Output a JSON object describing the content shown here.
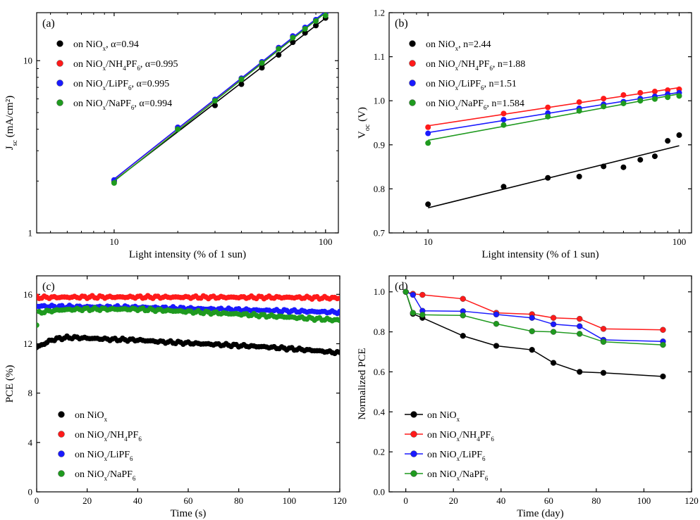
{
  "colors": {
    "black": "#000000",
    "red": "#ff1a1a",
    "blue": "#1a1aff",
    "green": "#1f9a1f"
  },
  "chart_data": [
    {
      "id": "a",
      "type": "scatter",
      "panel_label": "(a)",
      "xlabel": "Light intensity (% of 1 sun)",
      "ylabel_main": "J",
      "ylabel_sub": "sc",
      "ylabel_unit": " (mA/cm²)",
      "xscale": "log",
      "yscale": "log",
      "xlim": [
        4.3,
        115
      ],
      "ylim": [
        1,
        19
      ],
      "xticks": [
        10,
        100
      ],
      "yticks": [
        1,
        10
      ],
      "legend_position": "top-left",
      "fit_lines": true,
      "series": [
        {
          "name": "on NiOx, α=0.94",
          "label_parts": [
            "on NiO",
            "x",
            ", α=0.94"
          ],
          "color": "#000000",
          "x": [
            10,
            20,
            30,
            40,
            50,
            60,
            70,
            80,
            90,
            100
          ],
          "y": [
            2.0,
            4.02,
            5.5,
            7.3,
            9.1,
            10.8,
            12.8,
            14.5,
            16.0,
            17.7
          ]
        },
        {
          "name": "on NiOx/NH4PF6, α=0.995",
          "label_parts": [
            "on NiO",
            "x",
            "/NH",
            "4",
            "PF",
            "6",
            ", α=0.995"
          ],
          "color": "#ff1a1a",
          "x": [
            10,
            20,
            30,
            40,
            50,
            60,
            70,
            80,
            90,
            100
          ],
          "y": [
            2.02,
            4.1,
            5.9,
            7.9,
            9.8,
            11.9,
            13.9,
            15.5,
            17.2,
            18.7
          ]
        },
        {
          "name": "on NiOx/LiPF6, α=0.995",
          "label_parts": [
            "on NiO",
            "x",
            "/LiPF",
            "6",
            ", α=0.995"
          ],
          "color": "#1a1aff",
          "x": [
            10,
            20,
            30,
            40,
            50,
            60,
            70,
            80,
            90,
            100
          ],
          "y": [
            2.03,
            4.1,
            5.95,
            7.9,
            9.85,
            11.9,
            13.9,
            15.6,
            17.3,
            18.9
          ]
        },
        {
          "name": "on NiOx/NaPF6, α=0.994",
          "label_parts": [
            "on NiO",
            "x",
            "/NaPF",
            "6",
            ", α=0.994"
          ],
          "color": "#1f9a1f",
          "x": [
            10,
            20,
            30,
            40,
            50,
            60,
            70,
            80,
            90,
            100
          ],
          "y": [
            1.95,
            4.0,
            5.85,
            7.8,
            9.7,
            11.7,
            13.6,
            15.3,
            17.0,
            18.3
          ]
        }
      ]
    },
    {
      "id": "b",
      "type": "scatter",
      "panel_label": "(b)",
      "xlabel": "Light intensity (% of 1 sun)",
      "ylabel_main": "V",
      "ylabel_sub": "oc",
      "ylabel_unit": " (V)",
      "xscale": "log",
      "yscale": "linear",
      "xlim": [
        7.0,
        112
      ],
      "ylim": [
        0.7,
        1.2
      ],
      "xticks": [
        10,
        100
      ],
      "yticks": [
        0.7,
        0.8,
        0.9,
        1.0,
        1.1,
        1.2
      ],
      "legend_position": "top-left",
      "fit_lines": true,
      "series": [
        {
          "name": "on NiOx, n=2.44",
          "label_parts": [
            "on NiO",
            "x",
            ", n=2.44"
          ],
          "color": "#000000",
          "x": [
            10,
            20,
            30,
            40,
            50,
            60,
            70,
            80,
            90,
            100
          ],
          "y": [
            0.765,
            0.805,
            0.825,
            0.828,
            0.851,
            0.849,
            0.866,
            0.874,
            0.909,
            0.922
          ]
        },
        {
          "name": "on NiOx/NH4PF6, n=1.88",
          "label_parts": [
            "on NiO",
            "x",
            "/NH",
            "4",
            "PF",
            "6",
            ", n=1.88"
          ],
          "color": "#ff1a1a",
          "x": [
            10,
            20,
            30,
            40,
            50,
            60,
            70,
            80,
            90,
            100
          ],
          "y": [
            0.94,
            0.971,
            0.985,
            0.997,
            1.005,
            1.013,
            1.018,
            1.021,
            1.024,
            1.026
          ]
        },
        {
          "name": "on NiOx/LiPF6, n=1.51",
          "label_parts": [
            "on NiO",
            "x",
            "/LiPF",
            "6",
            ", n=1.51"
          ],
          "color": "#1a1aff",
          "x": [
            10,
            20,
            30,
            40,
            50,
            60,
            70,
            80,
            90,
            100
          ],
          "y": [
            0.926,
            0.957,
            0.972,
            0.983,
            0.992,
            0.998,
            1.005,
            1.01,
            1.015,
            1.018
          ]
        },
        {
          "name": "on NiOx/NaPF6, n=1.584",
          "label_parts": [
            "on NiO",
            "x",
            "/NaPF",
            "6",
            ", n=1.584"
          ],
          "color": "#1f9a1f",
          "x": [
            10,
            20,
            30,
            40,
            50,
            60,
            70,
            80,
            90,
            100
          ],
          "y": [
            0.904,
            0.945,
            0.964,
            0.977,
            0.987,
            0.994,
            1.0,
            1.004,
            1.008,
            1.011
          ]
        }
      ]
    },
    {
      "id": "c",
      "type": "scatter",
      "panel_label": "(c)",
      "xlabel": "Time (s)",
      "ylabel": "PCE (%)",
      "xscale": "linear",
      "yscale": "linear",
      "xlim": [
        0,
        120
      ],
      "ylim": [
        0,
        17.5
      ],
      "xticks": [
        0,
        20,
        40,
        60,
        80,
        100,
        120
      ],
      "yticks": [
        0,
        4,
        8,
        12,
        16
      ],
      "legend_position": "bottom-left",
      "points_per_second": 1,
      "series": [
        {
          "name": "on NiOx",
          "label_parts": [
            "on NiO",
            "x"
          ],
          "color": "#000000",
          "x": [
            0,
            2,
            4,
            6,
            8,
            10,
            12,
            15,
            20,
            25,
            30,
            40,
            50,
            60,
            70,
            80,
            90,
            100,
            110,
            120
          ],
          "y": [
            11.7,
            11.9,
            12.1,
            12.3,
            12.4,
            12.45,
            12.5,
            12.5,
            12.45,
            12.4,
            12.35,
            12.3,
            12.15,
            12.05,
            11.95,
            11.85,
            11.75,
            11.6,
            11.45,
            11.25
          ]
        },
        {
          "name": "on NiOx/NH4PF6",
          "label_parts": [
            "on NiO",
            "x",
            "/NH",
            "4",
            "PF",
            "6"
          ],
          "color": "#ff1a1a",
          "x": [
            0,
            20,
            40,
            60,
            80,
            100,
            120
          ],
          "y": [
            15.75,
            15.78,
            15.78,
            15.77,
            15.76,
            15.75,
            15.7
          ]
        },
        {
          "name": "on NiOx/LiPF6",
          "label_parts": [
            "on NiO",
            "x",
            "/LiPF",
            "6"
          ],
          "color": "#1a1aff",
          "x": [
            0,
            10,
            20,
            40,
            60,
            80,
            100,
            120
          ],
          "y": [
            15.05,
            15.0,
            14.98,
            14.95,
            14.85,
            14.75,
            14.65,
            14.55
          ]
        },
        {
          "name": "on NiOx/NaPF6",
          "label_parts": [
            "on NiO",
            "x",
            "/NaPF",
            "6"
          ],
          "color": "#1f9a1f",
          "x": [
            0,
            1,
            3,
            10,
            20,
            40,
            60,
            80,
            100,
            120
          ],
          "y": [
            13.5,
            14.5,
            14.6,
            14.75,
            14.8,
            14.8,
            14.6,
            14.4,
            14.15,
            13.9
          ]
        }
      ]
    },
    {
      "id": "d",
      "type": "line",
      "panel_label": "(d)",
      "xlabel": "Time (day)",
      "ylabel": "Normalized PCE",
      "xscale": "linear",
      "yscale": "linear",
      "xlim": [
        -7,
        120
      ],
      "ylim": [
        0,
        1.08
      ],
      "xticks": [
        0,
        20,
        40,
        60,
        80,
        100,
        120
      ],
      "yticks": [
        0.0,
        0.2,
        0.4,
        0.6,
        0.8,
        1.0
      ],
      "legend_position": "bottom-left",
      "series": [
        {
          "name": "on NiOx",
          "label_parts": [
            "on NiO",
            "x"
          ],
          "color": "#000000",
          "x": [
            0,
            3,
            7,
            24,
            38,
            53,
            62,
            73,
            83,
            108
          ],
          "y": [
            1.0,
            0.89,
            0.87,
            0.78,
            0.73,
            0.71,
            0.645,
            0.6,
            0.595,
            0.577
          ]
        },
        {
          "name": "on NiOx/NH4PF6",
          "label_parts": [
            "on NiO",
            "x",
            "/NH",
            "4",
            "PF",
            "6"
          ],
          "color": "#ff1a1a",
          "x": [
            0,
            3,
            7,
            24,
            38,
            53,
            62,
            73,
            83,
            108
          ],
          "y": [
            1.0,
            0.99,
            0.985,
            0.965,
            0.895,
            0.888,
            0.87,
            0.865,
            0.815,
            0.81
          ]
        },
        {
          "name": "on NiOx/LiPF6",
          "label_parts": [
            "on NiO",
            "x",
            "/LiPF",
            "6"
          ],
          "color": "#1a1aff",
          "x": [
            0,
            3,
            7,
            24,
            38,
            53,
            62,
            73,
            83,
            108
          ],
          "y": [
            1.0,
            0.985,
            0.905,
            0.903,
            0.887,
            0.87,
            0.838,
            0.828,
            0.76,
            0.752
          ]
        },
        {
          "name": "on NiOx/NaPF6",
          "label_parts": [
            "on NiO",
            "x",
            "/NaPF",
            "6"
          ],
          "color": "#1f9a1f",
          "x": [
            0,
            3,
            7,
            24,
            38,
            53,
            62,
            73,
            83,
            108
          ],
          "y": [
            1.0,
            0.895,
            0.885,
            0.882,
            0.84,
            0.803,
            0.8,
            0.79,
            0.75,
            0.735
          ]
        }
      ]
    }
  ]
}
